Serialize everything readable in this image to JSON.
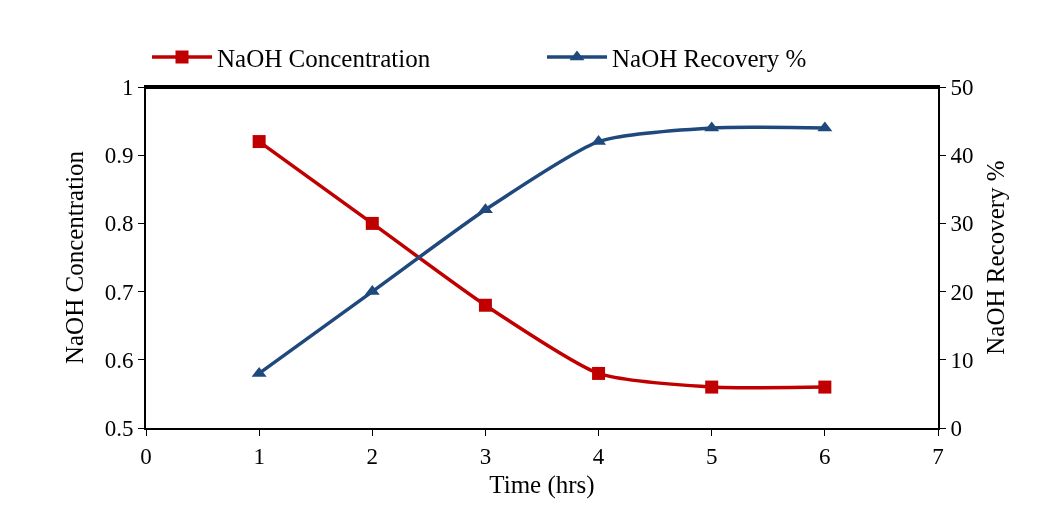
{
  "chart_data": {
    "type": "line",
    "xlabel": "Time (hrs)",
    "ylabel": "NaOH Concentration",
    "y2label": "NaOH Recovery %",
    "x": [
      1,
      2,
      3,
      4,
      5,
      6
    ],
    "series": [
      {
        "name": "NaOH Concentration",
        "color": "#c00000",
        "marker": "square",
        "values": [
          0.92,
          0.8,
          0.68,
          0.58,
          0.56,
          0.56
        ]
      },
      {
        "name": "NaOH Recovery %",
        "color": "#1f497d",
        "marker": "triangle",
        "axis": "y2",
        "values": [
          8,
          20,
          32,
          42,
          44,
          44
        ]
      }
    ],
    "xlim": [
      0,
      7
    ],
    "xticks": [
      0,
      1,
      2,
      3,
      4,
      5,
      6,
      7
    ],
    "ylim": [
      0.5,
      1
    ],
    "yticks": [
      0.5,
      0.6,
      0.7,
      0.8,
      0.9,
      {
        "value": 1,
        "label": "1"
      }
    ],
    "y2lim": [
      0,
      50
    ],
    "y2ticks": [
      0,
      10,
      20,
      30,
      40,
      50
    ],
    "grid": false,
    "legend": "top",
    "line_style": "solid"
  }
}
